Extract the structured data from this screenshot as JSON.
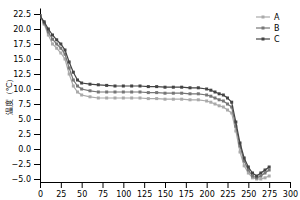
{
  "chart_data": {
    "type": "line",
    "ylabel": "温度（℃）",
    "x": [
      0,
      5,
      10,
      15,
      20,
      25,
      30,
      35,
      40,
      45,
      50,
      60,
      70,
      80,
      90,
      100,
      110,
      120,
      130,
      140,
      150,
      160,
      170,
      180,
      190,
      200,
      205,
      210,
      215,
      220,
      225,
      230,
      235,
      240,
      245,
      250,
      255,
      260,
      265,
      270,
      275
    ],
    "series": [
      {
        "name": "A",
        "color": "#aaaaaa",
        "values": [
          22.2,
          20.8,
          19.0,
          17.5,
          16.8,
          16.0,
          15.0,
          12.5,
          10.5,
          9.5,
          9.0,
          8.7,
          8.5,
          8.5,
          8.5,
          8.5,
          8.5,
          8.5,
          8.4,
          8.4,
          8.3,
          8.3,
          8.3,
          8.2,
          8.2,
          8.0,
          7.8,
          7.5,
          7.2,
          7.0,
          6.5,
          6.0,
          3.0,
          -0.5,
          -2.8,
          -4.0,
          -4.8,
          -5.0,
          -5.0,
          -4.8,
          -4.5
        ]
      },
      {
        "name": "B",
        "color": "#777777",
        "values": [
          22.2,
          21.0,
          19.5,
          18.3,
          17.5,
          16.8,
          15.8,
          13.5,
          11.5,
          10.5,
          10.0,
          9.7,
          9.5,
          9.5,
          9.5,
          9.5,
          9.5,
          9.5,
          9.4,
          9.4,
          9.3,
          9.3,
          9.3,
          9.2,
          9.2,
          9.0,
          8.8,
          8.5,
          8.2,
          8.0,
          7.5,
          7.0,
          3.8,
          0.5,
          -2.0,
          -3.5,
          -4.5,
          -4.8,
          -4.5,
          -4.0,
          -3.5
        ]
      },
      {
        "name": "C",
        "color": "#444444",
        "values": [
          22.2,
          21.2,
          20.0,
          19.0,
          18.2,
          17.5,
          16.5,
          14.5,
          12.8,
          11.5,
          11.0,
          10.8,
          10.7,
          10.6,
          10.5,
          10.5,
          10.5,
          10.5,
          10.4,
          10.4,
          10.3,
          10.3,
          10.3,
          10.2,
          10.2,
          10.0,
          9.8,
          9.5,
          9.2,
          9.0,
          8.5,
          7.8,
          4.5,
          1.0,
          -1.5,
          -3.0,
          -4.0,
          -4.5,
          -4.0,
          -3.5,
          -3.0
        ]
      }
    ],
    "xlim": [
      0,
      300
    ],
    "xticks": [
      0,
      25,
      50,
      75,
      100,
      125,
      150,
      175,
      200,
      225,
      250,
      275,
      300
    ],
    "ylim": [
      -5.5,
      23.5
    ],
    "yticks": [
      {
        "value": -5.0,
        "label": "−5.0"
      },
      {
        "value": -2.5,
        "label": "−2.5"
      },
      {
        "value": 0.0,
        "label": "0.0"
      },
      2.5,
      {
        "value": 5.0,
        "label": "5.0"
      },
      7.5,
      {
        "value": 10.0,
        "label": "10.0"
      },
      12.5,
      {
        "value": 15.0,
        "label": "15.0"
      },
      17.5,
      {
        "value": 20.0,
        "label": "20.0"
      },
      22.5
    ],
    "marker": "square",
    "legend": "upper-right",
    "grid": false
  }
}
